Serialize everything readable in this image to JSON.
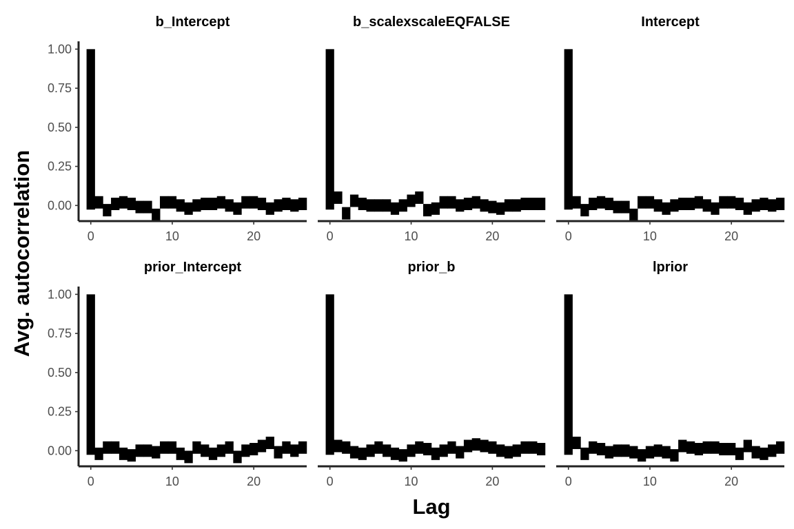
{
  "chart_data": {
    "type": "bar",
    "xlabel": "Lag",
    "ylabel": "Avg.  autocorrelation",
    "xlim": [
      -1.5,
      26.5
    ],
    "ylim": [
      -0.1,
      1.05
    ],
    "x_ticks": [
      0,
      10,
      20
    ],
    "y_ticks": [
      0,
      0.25,
      0.5,
      0.75,
      1.0
    ],
    "y_tick_labels": [
      "0.00",
      "0.25",
      "0.50",
      "0.75",
      "1.00"
    ],
    "lags": [
      0,
      1,
      2,
      3,
      4,
      5,
      6,
      7,
      8,
      9,
      10,
      11,
      12,
      13,
      14,
      15,
      16,
      17,
      18,
      19,
      20,
      21,
      22,
      23,
      24,
      25,
      26
    ],
    "bar_color": "#000000",
    "grid": false,
    "legend": "none",
    "panels": [
      {
        "title": "b_Intercept",
        "values": [
          1.0,
          0.02,
          -0.03,
          0.01,
          0.02,
          0.01,
          -0.01,
          -0.01,
          -0.06,
          0.02,
          0.02,
          0.0,
          -0.02,
          0.0,
          0.01,
          0.01,
          0.02,
          0.0,
          -0.02,
          0.02,
          0.02,
          0.01,
          -0.02,
          0.0,
          0.01,
          0.0,
          0.01
        ]
      },
      {
        "title": "b_scalexscaleEQFALSE",
        "values": [
          1.0,
          0.05,
          -0.05,
          0.03,
          0.01,
          0.0,
          0.0,
          0.0,
          -0.02,
          0.0,
          0.03,
          0.05,
          -0.03,
          -0.02,
          0.02,
          0.02,
          0.0,
          0.01,
          0.02,
          0.0,
          -0.01,
          -0.02,
          0.0,
          0.0,
          0.01,
          0.01,
          0.01
        ]
      },
      {
        "title": "Intercept",
        "values": [
          1.0,
          0.02,
          -0.03,
          0.01,
          0.02,
          0.01,
          -0.01,
          -0.01,
          -0.06,
          0.02,
          0.02,
          0.0,
          -0.02,
          0.0,
          0.01,
          0.01,
          0.02,
          0.0,
          -0.02,
          0.02,
          0.02,
          0.01,
          -0.02,
          0.0,
          0.01,
          0.0,
          0.01
        ]
      },
      {
        "title": "prior_Intercept",
        "values": [
          1.0,
          -0.02,
          0.02,
          0.02,
          -0.02,
          -0.03,
          0.0,
          0.0,
          -0.01,
          0.02,
          0.02,
          -0.02,
          -0.04,
          0.02,
          0.0,
          -0.02,
          0.0,
          0.02,
          -0.04,
          0.0,
          0.01,
          0.03,
          0.05,
          -0.01,
          0.02,
          0.0,
          0.02
        ]
      },
      {
        "title": "prior_b",
        "values": [
          1.0,
          0.03,
          0.02,
          -0.01,
          -0.02,
          0.0,
          0.02,
          0.0,
          -0.02,
          -0.03,
          0.0,
          0.02,
          0.01,
          -0.02,
          0.0,
          0.02,
          -0.01,
          0.03,
          0.04,
          0.03,
          0.02,
          0.0,
          -0.01,
          0.0,
          0.02,
          0.02,
          0.01
        ]
      },
      {
        "title": "lprior",
        "values": [
          1.0,
          0.05,
          -0.02,
          0.02,
          0.01,
          -0.01,
          0.0,
          0.0,
          -0.01,
          -0.03,
          -0.01,
          0.0,
          -0.01,
          -0.03,
          0.03,
          0.02,
          0.01,
          0.02,
          0.02,
          0.01,
          0.01,
          -0.02,
          0.03,
          -0.01,
          -0.02,
          0.0,
          0.02
        ]
      }
    ]
  }
}
